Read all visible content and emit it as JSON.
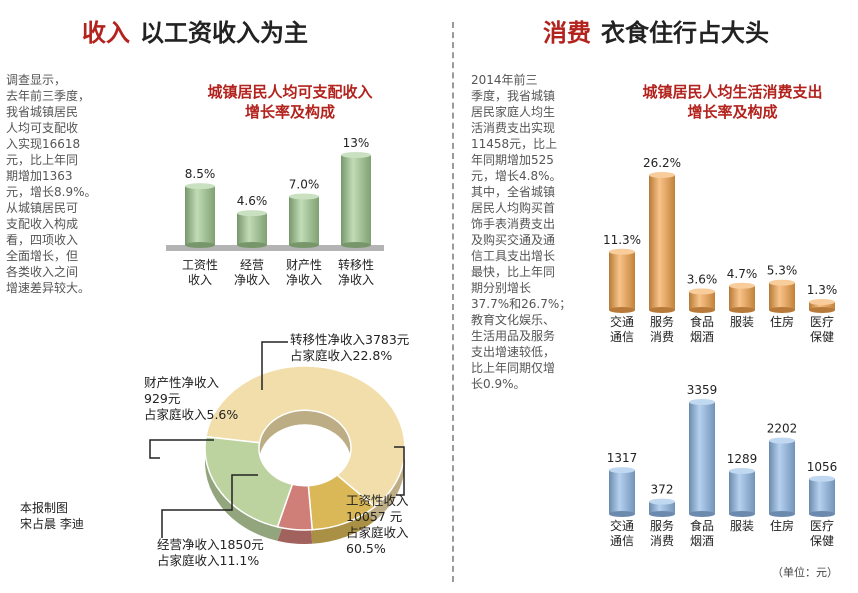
{
  "left": {
    "heading_keyword": "收入",
    "heading_text": "以工资收入为主",
    "paragraph_lines": [
      "调查显示，",
      "去年前三季度，",
      "我省城镇居民",
      "人均可支配收",
      "入实现16618",
      "元，比上年同",
      "期增加1363",
      "元，增长8.9%。",
      "从城镇居民可",
      "支配收入构成",
      "看，四项收入",
      "全面增长，但",
      "各类收入之间",
      "增速差异较大。"
    ],
    "credit_lines": [
      "本报制图",
      "宋占晨 李迪"
    ]
  },
  "right": {
    "heading_keyword": "消费",
    "heading_text": "衣食住行占大头",
    "paragraph_lines": [
      "2014年前三",
      "季度，我省城镇",
      "居民家庭人均生",
      "活消费支出实现",
      "11458元，比上",
      "年同期增加525",
      "元，增长4.8%。",
      "其中，全省城镇",
      "居民人均购买首",
      "饰手表消费支出",
      "及购买交通及通",
      "信工具支出增长",
      "最快，比上年同",
      "期分别增长",
      "37.7%和26.7%；",
      "教育文化娱乐、",
      "生活用品及服务",
      "支出增速较低，",
      "比上年同期仅增",
      "长0.9%。"
    ],
    "unit_label": "（单位：元）"
  },
  "chart_data": [
    {
      "id": "income-growth",
      "type": "bar",
      "title_lines": [
        "城镇居民人均可支配收入",
        "增长率及构成"
      ],
      "categories": [
        [
          "工资性",
          "收入"
        ],
        [
          "经营",
          "净收入"
        ],
        [
          "财产性",
          "净收入"
        ],
        [
          "转移性",
          "净收入"
        ]
      ],
      "values": [
        8.5,
        4.6,
        7.0,
        13
      ],
      "value_labels": [
        "8.5%",
        "4.6%",
        "7.0%",
        "13%"
      ],
      "ylim": [
        0,
        13
      ],
      "color": "#9fc98f"
    },
    {
      "id": "income-composition",
      "type": "pie",
      "donut": true,
      "slices": [
        {
          "label_lines": [
            "工资性收入",
            "10057 元",
            "占家庭收入",
            "60.5%"
          ],
          "value": 10057,
          "percent": 60.5,
          "color": "#f1deaa"
        },
        {
          "label_lines": [
            "经营净收入1850元",
            "占家庭收入11.1%"
          ],
          "value": 1850,
          "percent": 11.1,
          "color": "#dab858"
        },
        {
          "label_lines": [
            "财产性净收入",
            "929元",
            "占家庭收入5.6%"
          ],
          "value": 929,
          "percent": 5.6,
          "color": "#cf7e78"
        },
        {
          "label_lines": [
            "转移性净收入3783元",
            "占家庭收入22.8%"
          ],
          "value": 3783,
          "percent": 22.8,
          "color": "#bcd3a0"
        }
      ]
    },
    {
      "id": "consumption-growth",
      "type": "bar",
      "title_lines": [
        "城镇居民人均生活消费支出",
        "增长率及构成"
      ],
      "categories": [
        [
          "交通",
          "通信"
        ],
        [
          "服务",
          "消费"
        ],
        [
          "食品",
          "烟酒"
        ],
        [
          "服装"
        ],
        [
          "住房"
        ],
        [
          "医疗",
          "保健"
        ]
      ],
      "values": [
        11.3,
        26.2,
        3.6,
        4.7,
        5.3,
        1.3
      ],
      "value_labels": [
        "11.3%",
        "26.2%",
        "3.6%",
        "4.7%",
        "5.3%",
        "1.3%"
      ],
      "ylim": [
        0,
        26.2
      ],
      "color": "#f4a24a"
    },
    {
      "id": "consumption-amount",
      "type": "bar",
      "categories": [
        [
          "交通",
          "通信"
        ],
        [
          "服务",
          "消费"
        ],
        [
          "食品",
          "烟酒"
        ],
        [
          "服装"
        ],
        [
          "住房"
        ],
        [
          "医疗",
          "保健"
        ]
      ],
      "values": [
        1317,
        372,
        3359,
        1289,
        2202,
        1056
      ],
      "value_labels": [
        "1317",
        "372",
        "3359",
        "1289",
        "2202",
        "1056"
      ],
      "ylim": [
        0,
        3359
      ],
      "color": "#8fb8e6"
    }
  ]
}
